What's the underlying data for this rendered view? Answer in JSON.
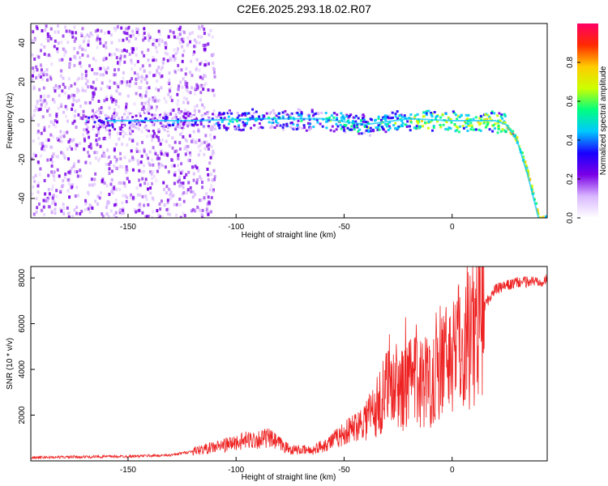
{
  "title": "C2E6.2025.293.18.02.R07",
  "colors": {
    "snr_line": "#ee2222",
    "colormap": [
      "#ffffff",
      "#d9b8ff",
      "#7a00e6",
      "#1a00ff",
      "#00c8ff",
      "#00ff80",
      "#ccff00",
      "#ffcc00",
      "#ff2a00",
      "#ff0066"
    ]
  },
  "chart_data": [
    {
      "type": "heatmap",
      "xlabel": "Height of straight line (km)",
      "ylabel": "Frequency (Hz)",
      "xlim": [
        -195,
        44
      ],
      "ylim": [
        -50,
        50
      ],
      "xticks": [
        -150,
        -100,
        -50,
        0
      ],
      "yticks": [
        -40,
        -20,
        0,
        20,
        40
      ],
      "colorbar": {
        "label": "Normalized spectral amplitude",
        "range": [
          0,
          1
        ],
        "ticks": [
          "0.0",
          "0.2",
          "0.4",
          "0.6",
          "0.8"
        ]
      },
      "ridge": [
        {
          "x": -160,
          "y": 0
        },
        {
          "x": -120,
          "y": 0
        },
        {
          "x": -90,
          "y": 1
        },
        {
          "x": -60,
          "y": 1
        },
        {
          "x": -40,
          "y": -2
        },
        {
          "x": -20,
          "y": 1
        },
        {
          "x": 0,
          "y": 0
        },
        {
          "x": 20,
          "y": 0
        },
        {
          "x": 25,
          "y": -2
        },
        {
          "x": 30,
          "y": -10
        },
        {
          "x": 35,
          "y": -28
        },
        {
          "x": 40,
          "y": -50
        }
      ]
    },
    {
      "type": "line",
      "xlabel": "Height of straight line (km)",
      "ylabel": "SNR (10 * v/v)",
      "xlim": [
        -195,
        44
      ],
      "ylim": [
        0,
        8500
      ],
      "xticks": [
        -150,
        -100,
        -50,
        0
      ],
      "yticks": [
        2000,
        4000,
        6000,
        8000
      ],
      "envelope": [
        {
          "x": -195,
          "y": 150
        },
        {
          "x": -150,
          "y": 200
        },
        {
          "x": -130,
          "y": 250
        },
        {
          "x": -110,
          "y": 600
        },
        {
          "x": -95,
          "y": 900
        },
        {
          "x": -85,
          "y": 1000
        },
        {
          "x": -75,
          "y": 500
        },
        {
          "x": -65,
          "y": 450
        },
        {
          "x": -55,
          "y": 900
        },
        {
          "x": -45,
          "y": 1500
        },
        {
          "x": -35,
          "y": 2300
        },
        {
          "x": -28,
          "y": 3500
        },
        {
          "x": -24,
          "y": 3000
        },
        {
          "x": -18,
          "y": 3500
        },
        {
          "x": -10,
          "y": 3500
        },
        {
          "x": -5,
          "y": 4300
        },
        {
          "x": 0,
          "y": 4800
        },
        {
          "x": 5,
          "y": 5200
        },
        {
          "x": 10,
          "y": 5800
        },
        {
          "x": 15,
          "y": 6800
        },
        {
          "x": 20,
          "y": 7500
        },
        {
          "x": 30,
          "y": 7800
        },
        {
          "x": 44,
          "y": 7900
        }
      ]
    }
  ]
}
